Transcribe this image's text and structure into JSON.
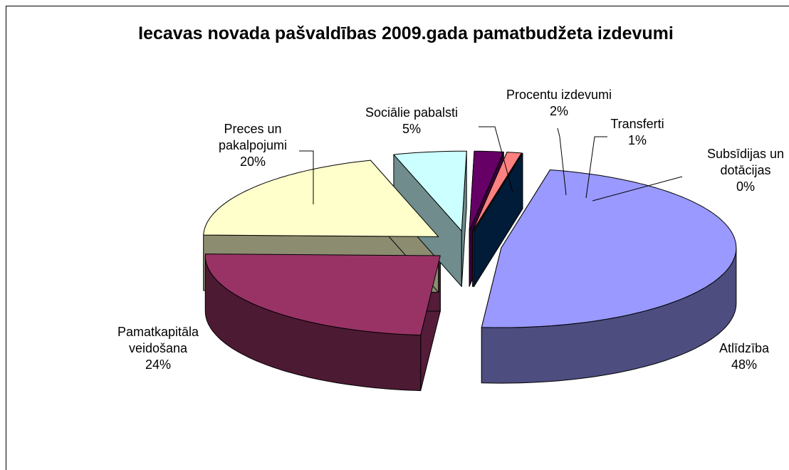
{
  "chart_data": {
    "type": "pie3d",
    "title": "Iecavas novada pašvaldības 2009.gada pamatbudžeta izdevumi",
    "categories": [
      "Atlīdzība",
      "Pamatkapitāla veidošana",
      "Preces un pakalpojumi",
      "Sociālie pabalsti",
      "Procentu izdevumi",
      "Transferti",
      "Subsīdijas un dotācijas"
    ],
    "values": [
      48,
      24,
      20,
      5,
      2,
      1,
      0
    ],
    "value_labels": [
      "48%",
      "24%",
      "20%",
      "5%",
      "2%",
      "1%",
      "0%"
    ],
    "colors": [
      "#9999ff",
      "#993366",
      "#ffffcc",
      "#ccffff",
      "#660066",
      "#ff8080",
      "#003366"
    ]
  }
}
